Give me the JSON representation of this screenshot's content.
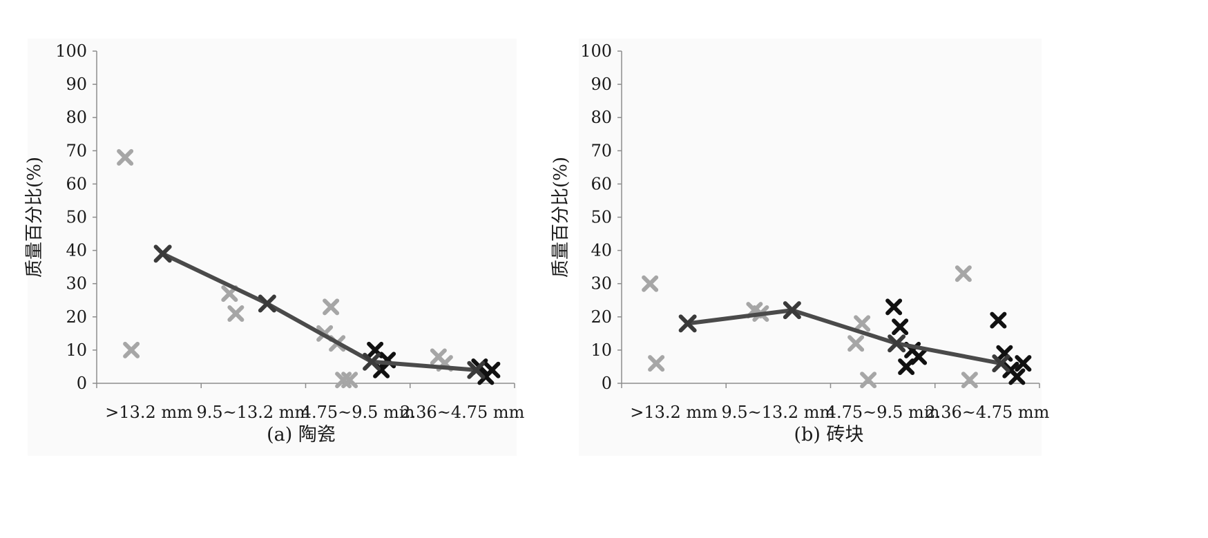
{
  "chart_data": [
    {
      "type": "scatter",
      "caption": "(a) 陶瓷",
      "ylabel": "质量百分比(%)",
      "categories": [
        ">13.2 mm",
        "9.5~13.2 mm",
        "4.75~9.5 mm",
        "2.36~4.75 mm"
      ],
      "ylim": [
        0,
        100
      ],
      "yticks": [
        0,
        10,
        20,
        30,
        40,
        50,
        60,
        70,
        80,
        90,
        100
      ],
      "grid": false,
      "legend": "none",
      "mean_line": [
        39,
        24,
        6.5,
        4
      ],
      "scatter_light": [
        {
          "category": 0,
          "values": [
            68,
            10
          ]
        },
        {
          "category": 1,
          "values": [
            27,
            21
          ]
        },
        {
          "category": 2,
          "values": [
            15,
            23,
            12,
            1,
            1
          ]
        },
        {
          "category": 3,
          "values": [
            8,
            6
          ]
        }
      ],
      "scatter_dark": [
        {
          "category": 2,
          "values": [
            10,
            4,
            7
          ]
        },
        {
          "category": 3,
          "values": [
            5,
            2,
            4
          ]
        }
      ],
      "colors": {
        "line": "#4a4a4a",
        "light_marker": "#a6a6a6",
        "dark_marker": "#111111",
        "mean_marker": "#3a3a3a"
      }
    },
    {
      "type": "scatter",
      "caption": "(b) 砖块",
      "ylabel": "质量百分比(%)",
      "categories": [
        ">13.2 mm",
        "9.5~13.2 mm",
        "4.75~9.5 mm",
        "2.36~4.75 mm"
      ],
      "ylim": [
        0,
        100
      ],
      "yticks": [
        0,
        10,
        20,
        30,
        40,
        50,
        60,
        70,
        80,
        90,
        100
      ],
      "grid": false,
      "legend": "none",
      "mean_line": [
        18,
        22,
        12,
        6
      ],
      "scatter_light": [
        {
          "category": 0,
          "values": [
            30,
            6
          ]
        },
        {
          "category": 1,
          "values": [
            22,
            21
          ]
        },
        {
          "category": 2,
          "values": [
            12,
            18,
            1
          ]
        },
        {
          "category": 3,
          "values": [
            33,
            1
          ]
        }
      ],
      "scatter_dark": [
        {
          "category": 2,
          "values": [
            23,
            17,
            5,
            10,
            8
          ]
        },
        {
          "category": 3,
          "values": [
            19,
            9,
            4,
            2,
            6
          ]
        }
      ],
      "colors": {
        "line": "#4a4a4a",
        "light_marker": "#a6a6a6",
        "dark_marker": "#111111",
        "mean_marker": "#3a3a3a"
      }
    }
  ]
}
